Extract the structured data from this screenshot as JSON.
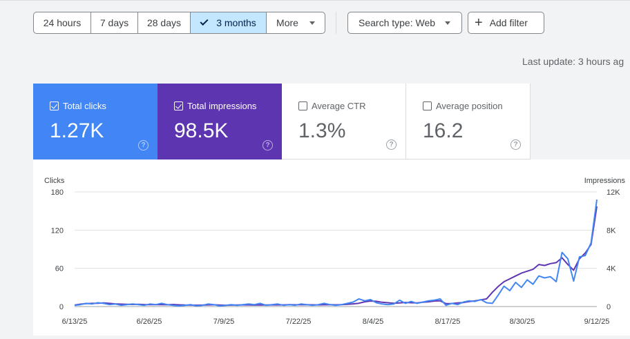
{
  "date_range": {
    "options": [
      "24 hours",
      "7 days",
      "28 days",
      "3 months",
      "More"
    ],
    "selected": "3 months"
  },
  "filters": {
    "search_type": "Search type: Web",
    "add_filter": "Add filter"
  },
  "last_update": "Last update: 3 hours ag",
  "metrics": [
    {
      "label": "Total clicks",
      "value": "1.27K",
      "checked": true,
      "color": "#4285f4"
    },
    {
      "label": "Total impressions",
      "value": "98.5K",
      "checked": true,
      "color": "#5e35b1"
    },
    {
      "label": "Average CTR",
      "value": "1.3%",
      "checked": false
    },
    {
      "label": "Average position",
      "value": "16.2",
      "checked": false
    }
  ],
  "help_glyph": "?",
  "chart_data": {
    "type": "line",
    "left_axis": {
      "label": "Clicks",
      "ticks": [
        "180",
        "120",
        "60",
        "0"
      ],
      "range": [
        0,
        180
      ]
    },
    "right_axis": {
      "label": "Impressions",
      "ticks": [
        "12K",
        "8K",
        "4K",
        "0"
      ],
      "range": [
        0,
        12000
      ]
    },
    "x_labels": [
      "6/13/25",
      "6/26/25",
      "7/9/25",
      "7/22/25",
      "8/4/25",
      "8/17/25",
      "8/30/25",
      "9/12/25"
    ],
    "series": [
      {
        "name": "Clicks",
        "axis": "left",
        "color": "#4285f4",
        "values": [
          2,
          3,
          5,
          4,
          6,
          5,
          3,
          4,
          2,
          3,
          4,
          3,
          2,
          4,
          3,
          5,
          3,
          2,
          1,
          2,
          3,
          1,
          2,
          4,
          3,
          1,
          2,
          3,
          2,
          3,
          4,
          3,
          5,
          2,
          3,
          4,
          2,
          3,
          2,
          4,
          3,
          2,
          3,
          5,
          3,
          2,
          3,
          5,
          7,
          12,
          9,
          11,
          6,
          4,
          3,
          4,
          10,
          5,
          8,
          5,
          7,
          9,
          10,
          12,
          2,
          5,
          3,
          7,
          9,
          8,
          11,
          6,
          5,
          18,
          32,
          25,
          38,
          30,
          42,
          35,
          48,
          45,
          47,
          39,
          85,
          75,
          40,
          78,
          80,
          100,
          168
        ]
      },
      {
        "name": "Impressions",
        "axis": "right",
        "color": "#5e35b1",
        "values": [
          150,
          250,
          300,
          330,
          350,
          380,
          330,
          280,
          250,
          230,
          220,
          230,
          210,
          200,
          200,
          200,
          190,
          220,
          180,
          160,
          150,
          140,
          150,
          170,
          190,
          150,
          140,
          150,
          160,
          170,
          170,
          150,
          170,
          160,
          170,
          180,
          170,
          200,
          180,
          200,
          190,
          180,
          170,
          190,
          200,
          180,
          200,
          230,
          280,
          350,
          500,
          580,
          550,
          450,
          400,
          350,
          380,
          430,
          400,
          380,
          450,
          500,
          580,
          600,
          300,
          320,
          380,
          420,
          520,
          600,
          700,
          800,
          1500,
          2100,
          2600,
          2900,
          3200,
          3500,
          3700,
          3900,
          4400,
          4300,
          4500,
          4600,
          5100,
          4400,
          3800,
          5000,
          5600,
          6500,
          10500
        ]
      }
    ]
  }
}
